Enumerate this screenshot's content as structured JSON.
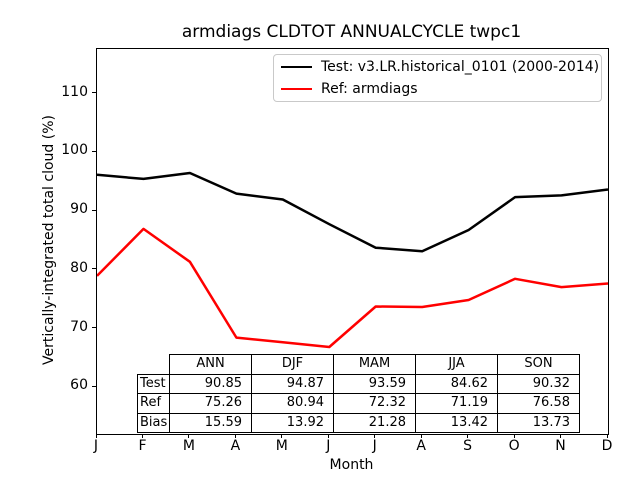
{
  "figure": {
    "title": "armdiags CLDTOT ANNUALCYCLE twpc1"
  },
  "chart_data": {
    "type": "line",
    "title": "armdiags CLDTOT ANNUALCYCLE twpc1",
    "xlabel": "Month",
    "ylabel": "Vertically-integrated total cloud (%)",
    "x_tick_labels": [
      "J",
      "F",
      "M",
      "A",
      "M",
      "J",
      "J",
      "A",
      "S",
      "O",
      "N",
      "D"
    ],
    "months": [
      "Jan",
      "Feb",
      "Mar",
      "Apr",
      "May",
      "Jun",
      "Jul",
      "Aug",
      "Sep",
      "Oct",
      "Nov",
      "Dec"
    ],
    "y_ticks": [
      60,
      70,
      80,
      90,
      100,
      110
    ],
    "ylim": [
      51.9,
      117.4
    ],
    "grid": false,
    "legend_position": "upper right",
    "series": [
      {
        "name": "Test: v3.LR.historical_0101 (2000-2014)",
        "color": "#000000",
        "values": [
          96.0,
          95.3,
          96.3,
          92.8,
          91.8,
          87.6,
          83.6,
          83.0,
          86.6,
          92.2,
          92.5,
          93.5
        ]
      },
      {
        "name": "Ref: armdiags",
        "color": "#ff0000",
        "values": [
          78.8,
          86.8,
          81.2,
          68.3,
          67.5,
          66.7,
          73.6,
          73.5,
          74.7,
          78.3,
          76.9,
          77.5
        ]
      }
    ]
  },
  "stats_table": {
    "columns": [
      "ANN",
      "DJF",
      "MAM",
      "JJA",
      "SON"
    ],
    "rows": [
      {
        "label": "Test",
        "values": [
          "90.85",
          "94.87",
          "93.59",
          "84.62",
          "90.32"
        ]
      },
      {
        "label": "Ref",
        "values": [
          "75.26",
          "80.94",
          "72.32",
          "71.19",
          "76.58"
        ]
      },
      {
        "label": "Bias",
        "values": [
          "15.59",
          "13.92",
          "21.28",
          "13.42",
          "13.73"
        ]
      }
    ]
  }
}
